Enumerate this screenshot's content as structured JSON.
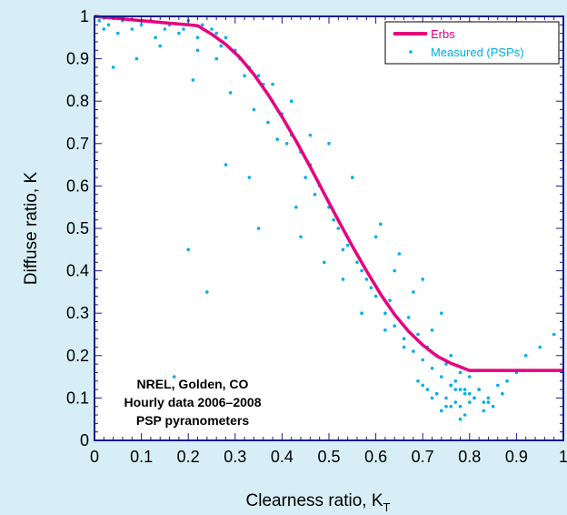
{
  "chart_data": {
    "type": "scatter",
    "title": "",
    "xlabel": "Clearness ratio, K",
    "xlabel_sub": "T",
    "ylabel": "Diffuse ratio, K",
    "xlim": [
      0,
      1
    ],
    "ylim": [
      0,
      1
    ],
    "x_ticks": [
      0,
      0.1,
      0.2,
      0.3,
      0.4,
      0.5,
      0.6,
      0.7,
      0.8,
      0.9,
      1
    ],
    "y_ticks": [
      0,
      0.1,
      0.2,
      0.3,
      0.4,
      0.5,
      0.6,
      0.7,
      0.8,
      0.9,
      1
    ],
    "x_tick_labels": [
      "0",
      "0.1",
      "0.2",
      "0.3",
      "0.4",
      "0.5",
      "0.6",
      "0.7",
      "0.8",
      "0.9",
      "1"
    ],
    "y_tick_labels": [
      "0",
      "0.1",
      "0.2",
      "0.3",
      "0.4",
      "0.5",
      "0.6",
      "0.7",
      "0.8",
      "0.9",
      "1"
    ],
    "grid": false,
    "legend_position": "top-right",
    "series": [
      {
        "name": "Erbs",
        "kind": "line",
        "color": "#e6007e",
        "x": [
          0,
          0.05,
          0.1,
          0.15,
          0.2,
          0.22,
          0.25,
          0.28,
          0.31,
          0.34,
          0.37,
          0.4,
          0.43,
          0.46,
          0.49,
          0.52,
          0.55,
          0.58,
          0.61,
          0.64,
          0.67,
          0.7,
          0.73,
          0.76,
          0.79,
          0.8,
          0.82,
          0.85,
          0.9,
          0.95,
          1
        ],
        "y": [
          1.0,
          0.995,
          0.99,
          0.985,
          0.98,
          0.978,
          0.958,
          0.934,
          0.903,
          0.863,
          0.816,
          0.763,
          0.706,
          0.645,
          0.582,
          0.519,
          0.458,
          0.4,
          0.345,
          0.297,
          0.257,
          0.225,
          0.199,
          0.182,
          0.169,
          0.165,
          0.165,
          0.165,
          0.165,
          0.165,
          0.165
        ]
      },
      {
        "name": "Measured (PSPs)",
        "kind": "scatter",
        "color": "#00aee8",
        "x": [
          0.01,
          0.02,
          0.03,
          0.05,
          0.06,
          0.08,
          0.1,
          0.12,
          0.13,
          0.15,
          0.16,
          0.18,
          0.19,
          0.2,
          0.22,
          0.23,
          0.25,
          0.26,
          0.27,
          0.28,
          0.3,
          0.31,
          0.33,
          0.35,
          0.36,
          0.38,
          0.4,
          0.42,
          0.44,
          0.46,
          0.48,
          0.5,
          0.52,
          0.54,
          0.56,
          0.58,
          0.6,
          0.62,
          0.64,
          0.66,
          0.68,
          0.7,
          0.72,
          0.74,
          0.76,
          0.78,
          0.8,
          0.82,
          0.84,
          0.86,
          0.88,
          0.9,
          0.92,
          0.95,
          0.98,
          0.04,
          0.09,
          0.14,
          0.21,
          0.29,
          0.34,
          0.37,
          0.41,
          0.45,
          0.47,
          0.51,
          0.53,
          0.57,
          0.59,
          0.63,
          0.67,
          0.69,
          0.71,
          0.73,
          0.75,
          0.77,
          0.79,
          0.81,
          0.83,
          0.85,
          0.87,
          0.2,
          0.17,
          0.33,
          0.39,
          0.43,
          0.55,
          0.61,
          0.65,
          0.7,
          0.74,
          0.76,
          0.78,
          0.8,
          0.72,
          0.68,
          0.64,
          0.6,
          0.5,
          0.46,
          0.42,
          0.38,
          0.32,
          0.26,
          0.22,
          0.24,
          0.28,
          0.35,
          0.44,
          0.49,
          0.53,
          0.57,
          0.62,
          0.66,
          0.7,
          0.75,
          0.79,
          0.83,
          0.78,
          0.76,
          0.74,
          0.77,
          0.81,
          0.73,
          0.71,
          0.69,
          0.8,
          0.82,
          0.84,
          0.75,
          0.72,
          0.79,
          0.77,
          0.76,
          0.74,
          0.78
        ],
        "y": [
          0.99,
          0.97,
          0.98,
          0.96,
          0.99,
          0.97,
          0.98,
          0.99,
          0.95,
          0.97,
          0.98,
          0.96,
          0.97,
          0.99,
          0.95,
          0.98,
          0.97,
          0.96,
          0.93,
          0.95,
          0.92,
          0.9,
          0.88,
          0.86,
          0.84,
          0.8,
          0.77,
          0.72,
          0.68,
          0.65,
          0.6,
          0.55,
          0.5,
          0.46,
          0.42,
          0.38,
          0.34,
          0.3,
          0.27,
          0.24,
          0.21,
          0.19,
          0.17,
          0.15,
          0.13,
          0.12,
          0.11,
          0.12,
          0.1,
          0.13,
          0.14,
          0.16,
          0.2,
          0.22,
          0.25,
          0.88,
          0.9,
          0.93,
          0.85,
          0.82,
          0.78,
          0.75,
          0.7,
          0.62,
          0.58,
          0.52,
          0.45,
          0.4,
          0.36,
          0.33,
          0.29,
          0.25,
          0.22,
          0.2,
          0.18,
          0.14,
          0.12,
          0.1,
          0.09,
          0.08,
          0.11,
          0.45,
          0.15,
          0.62,
          0.71,
          0.55,
          0.62,
          0.51,
          0.44,
          0.38,
          0.3,
          0.2,
          0.16,
          0.09,
          0.26,
          0.35,
          0.4,
          0.48,
          0.7,
          0.72,
          0.8,
          0.84,
          0.86,
          0.9,
          0.92,
          0.35,
          0.65,
          0.5,
          0.48,
          0.42,
          0.38,
          0.3,
          0.26,
          0.22,
          0.13,
          0.1,
          0.06,
          0.07,
          0.05,
          0.08,
          0.07,
          0.09,
          0.1,
          0.11,
          0.12,
          0.14,
          0.15,
          0.12,
          0.09,
          0.08,
          0.1,
          0.11,
          0.12,
          0.13,
          0.07,
          0.08
        ]
      }
    ],
    "annotations": [
      "NREL, Golden, CO",
      "Hourly data 2006–2008",
      "PSP pyranometers"
    ]
  }
}
